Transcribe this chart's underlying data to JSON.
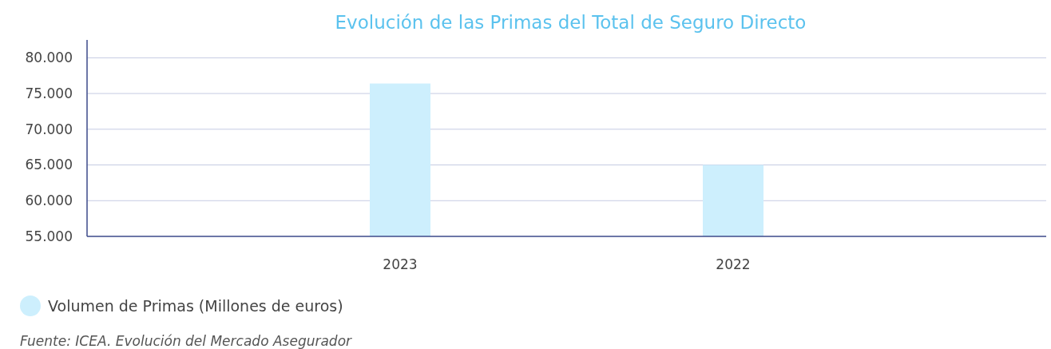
{
  "chart_data": {
    "type": "bar",
    "title": "Evolución de las Primas del Total de Seguro Directo",
    "categories": [
      "2023",
      "2022"
    ],
    "series": [
      {
        "name": "Volumen de Primas (Millones de euros)",
        "color": "#cdeffd",
        "values": [
          76400,
          65000
        ]
      }
    ],
    "ylim": [
      55000,
      82500
    ],
    "yticks": [
      {
        "value": 55000,
        "label": "55.000"
      },
      {
        "value": 60000,
        "label": "60.000"
      },
      {
        "value": 65000,
        "label": "65.000"
      },
      {
        "value": 70000,
        "label": "70.000"
      },
      {
        "value": 75000,
        "label": "75.000"
      },
      {
        "value": 80000,
        "label": "80.000"
      }
    ],
    "grid": "y",
    "legend": "bottom",
    "annotations": [
      "Fuente: ICEA. Evolución del Mercado Asegurador"
    ]
  }
}
